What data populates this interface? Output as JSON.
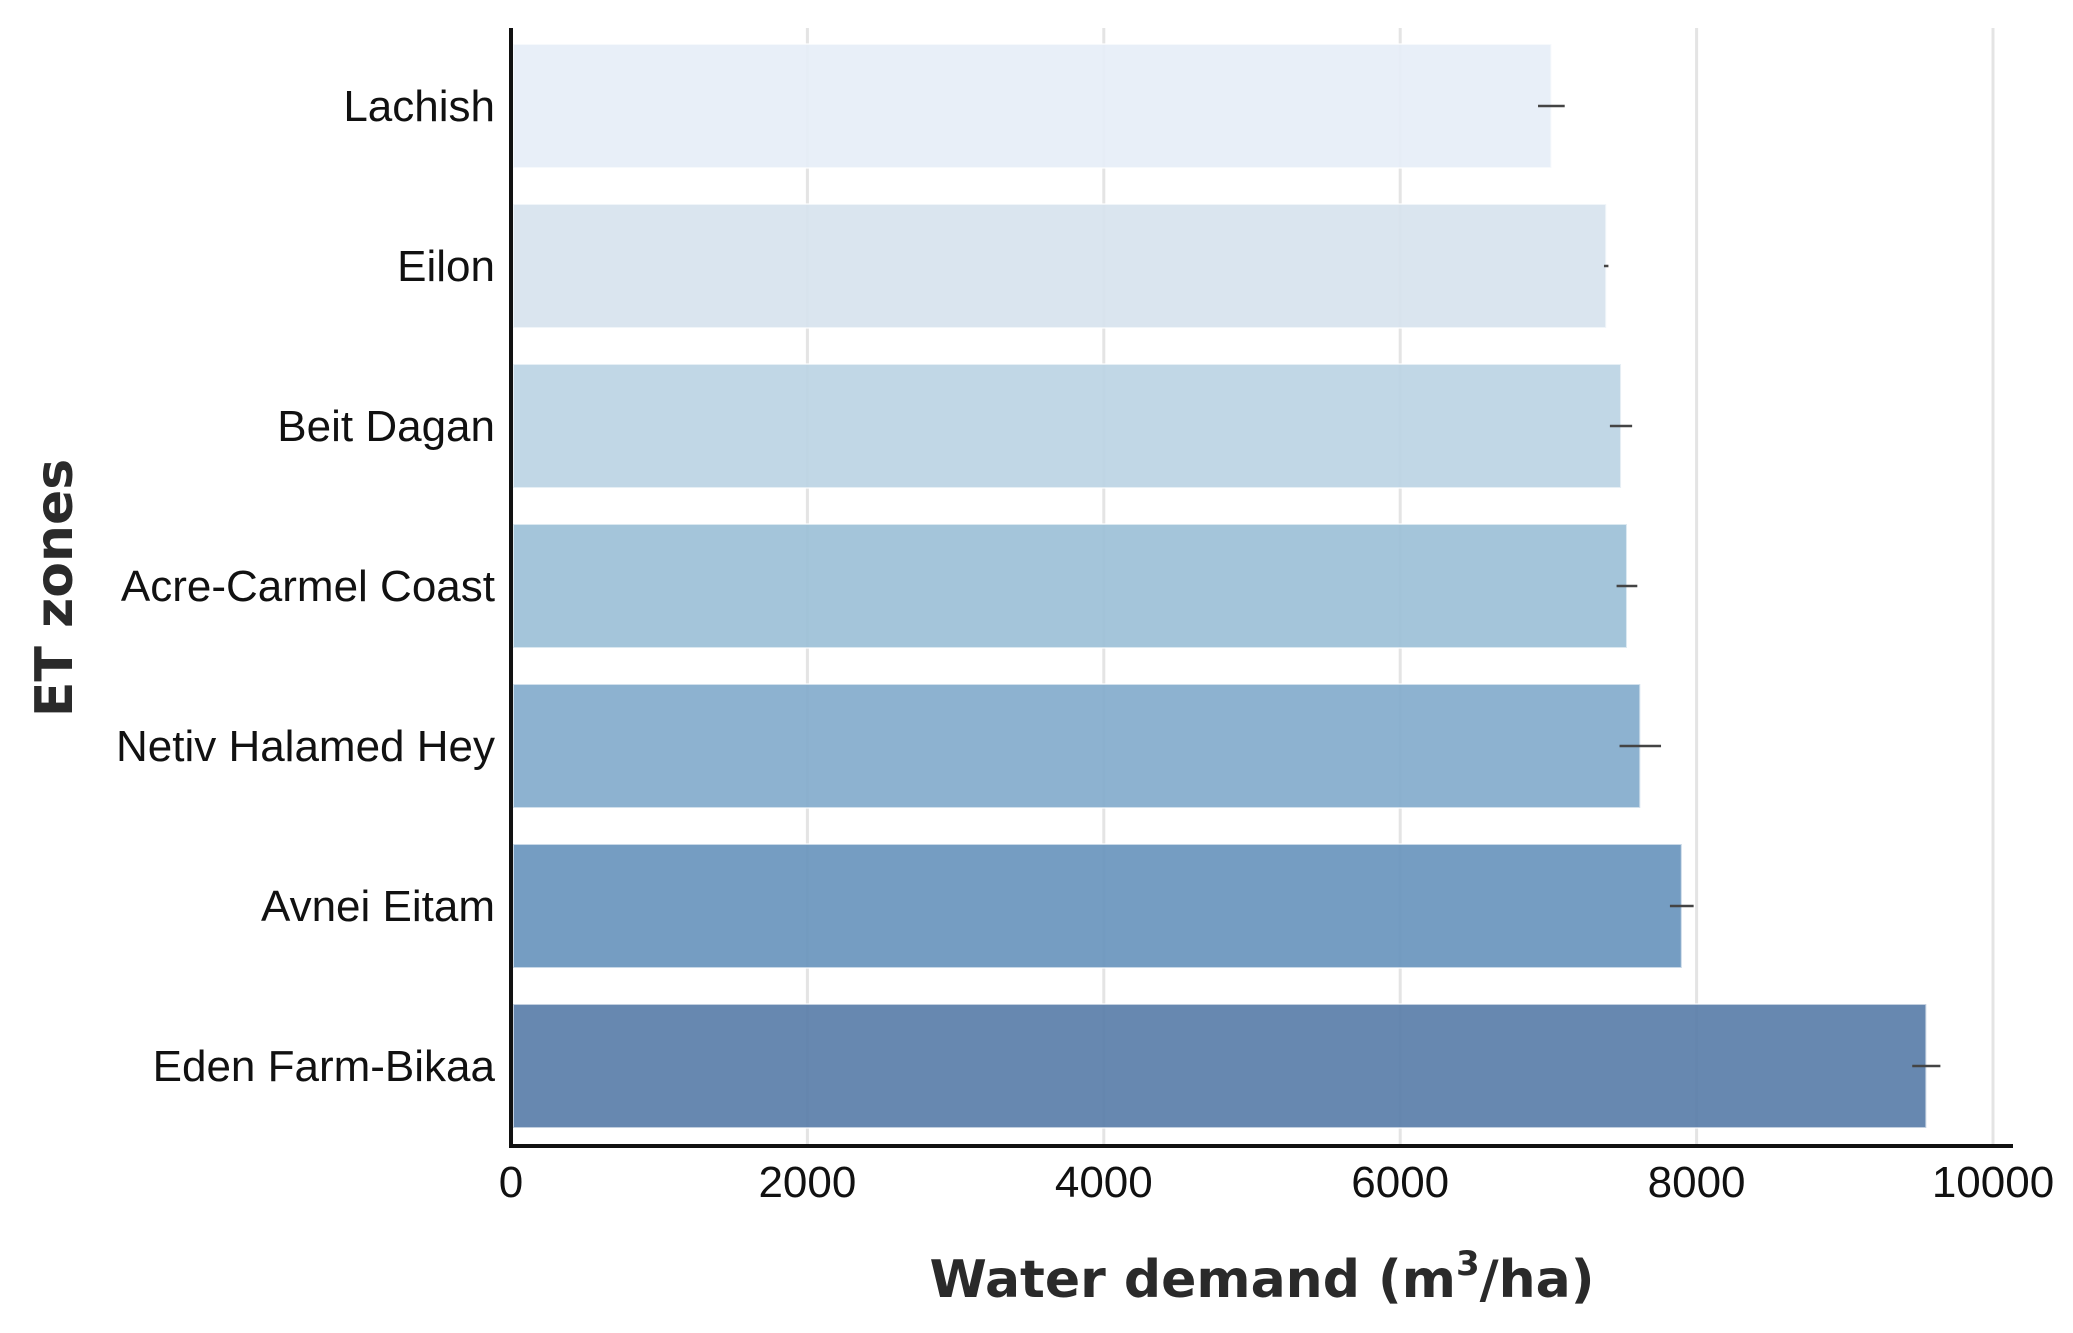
{
  "chart_data": {
    "type": "bar",
    "orientation": "horizontal",
    "categories": [
      "Lachish",
      "Eilon",
      "Beit Dagan",
      "Acre-Carmel Coast",
      "Netiv Halamed Hey",
      "Avnei Eitam",
      "Eden Farm-Bikaa"
    ],
    "values": [
      7020,
      7390,
      7490,
      7530,
      7620,
      7900,
      9550
    ],
    "errors": [
      90,
      15,
      75,
      70,
      140,
      80,
      95
    ],
    "colors": [
      "#e6eef7",
      "#d7e3ee",
      "#bcd4e4",
      "#9cc0d7",
      "#83abcc",
      "#6995bd",
      "#5a7ea9"
    ],
    "xlim": [
      0,
      10000
    ],
    "xticks": [
      0,
      2000,
      4000,
      6000,
      8000,
      10000
    ],
    "xlabel_main": "Water demand (m",
    "xlabel_sup": "3",
    "xlabel_tail": "/ha)",
    "ylabel": "ET zones",
    "grid": "vertical",
    "legend": "none"
  }
}
